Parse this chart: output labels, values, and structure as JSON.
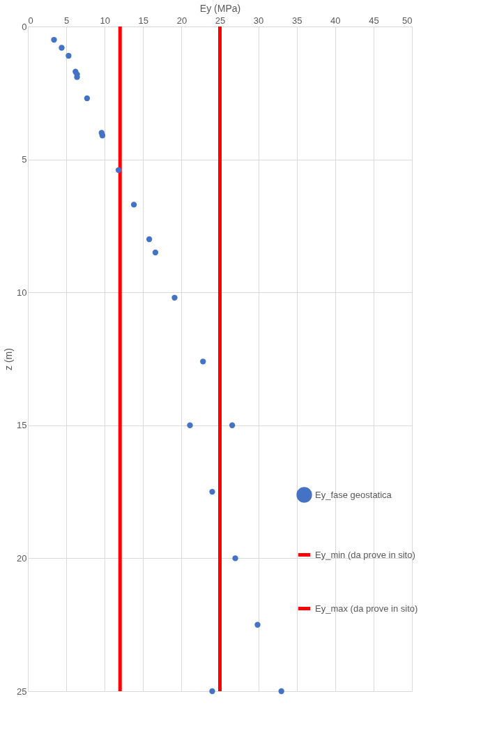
{
  "chart_data": {
    "type": "scatter",
    "xlabel": "Ey (MPa)",
    "ylabel": "z (m)",
    "xlim": [
      0,
      50
    ],
    "xticks": [
      0,
      5,
      10,
      15,
      20,
      25,
      30,
      35,
      40,
      45,
      50
    ],
    "ylim": [
      25,
      0
    ],
    "yticks": [
      0,
      5,
      10,
      15,
      20,
      25
    ],
    "grid": true,
    "legend": "right",
    "series": [
      {
        "name": "Ey_fase geostatica",
        "color": "#4472c4",
        "marker": "circle",
        "x": [
          3.4,
          4.4,
          5.3,
          6.2,
          6.4,
          6.4,
          7.7,
          9.6,
          9.7,
          11.8,
          13.8,
          15.8,
          16.6,
          19.1,
          22.8,
          21.1,
          26.6,
          24.0,
          27.0,
          29.9,
          24.0,
          33.0
        ],
        "values": [
          0.5,
          0.8,
          1.1,
          1.7,
          1.8,
          1.9,
          2.7,
          4.0,
          4.1,
          5.4,
          6.7,
          8.0,
          8.5,
          10.2,
          12.6,
          15.0,
          15.0,
          17.5,
          20.0,
          22.5,
          25.0,
          25.0
        ]
      },
      {
        "name": "Ey_min (da prove in sito)",
        "color": "#ff0000",
        "type": "line",
        "line_style": "solid",
        "x": [
          12,
          12
        ],
        "values": [
          0,
          25
        ]
      },
      {
        "name": "Ey_max (da prove in sito)",
        "color": "#ff0000",
        "type": "line",
        "line_style": "solid",
        "x": [
          25,
          25
        ],
        "values": [
          0,
          25
        ]
      }
    ]
  }
}
